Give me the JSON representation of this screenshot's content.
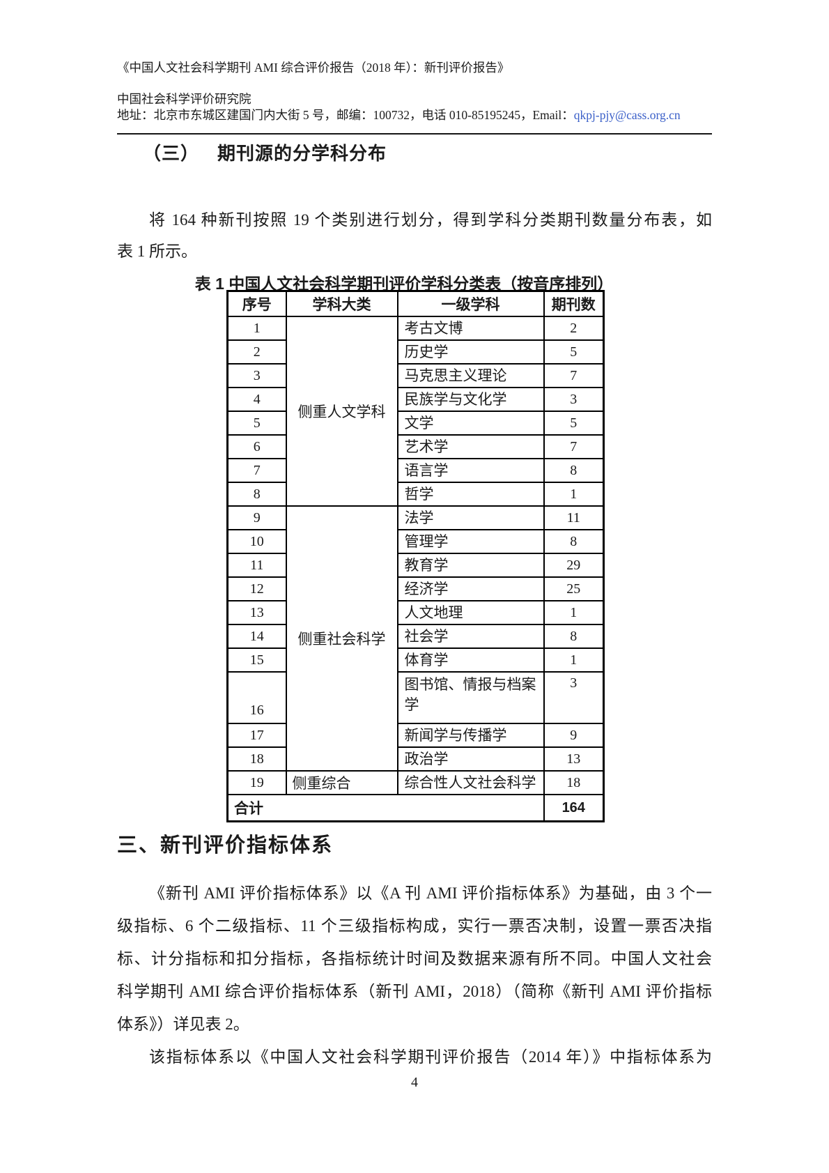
{
  "colors": {
    "link_blue": "#3a5fc8",
    "text": "#1b1b1b"
  },
  "header": {
    "title": "《中国人文社会科学期刊 AMI 综合评价报告（2018 年）：新刊评价报告》",
    "org": "中国社会科学评价研究院",
    "address_prefix": "地址：北京市东城区建国门内大街 5 号，邮编：100732，电话 010-85195245，Email：",
    "email": "qkpj-pjy@cass.org.cn"
  },
  "section3": {
    "label": "（三）",
    "title": "期刊源的分学科分布"
  },
  "para_intro": {
    "lines": [
      "将 164 种新刊按照 19 个类别进行划分，得到学科分类期刊数量分布表，如",
      "表 1 所示。"
    ]
  },
  "table1": {
    "caption": "表 1 中国人文社会科学期刊评价学科分类表（按音序排列）",
    "columns": [
      "序号",
      "学科大类",
      "一级学科",
      "期刊数"
    ],
    "groups": [
      {
        "name": "侧重人文学科",
        "span": 8
      },
      {
        "name": "侧重社会科学",
        "span": 10
      },
      {
        "name": "侧重综合",
        "span": 1
      }
    ],
    "rows": [
      {
        "no": "1",
        "discipline": "考古文博",
        "count": "2"
      },
      {
        "no": "2",
        "discipline": "历史学",
        "count": "5"
      },
      {
        "no": "3",
        "discipline": "马克思主义理论",
        "count": "7"
      },
      {
        "no": "4",
        "discipline": "民族学与文化学",
        "count": "3"
      },
      {
        "no": "5",
        "discipline": "文学",
        "count": "5"
      },
      {
        "no": "6",
        "discipline": "艺术学",
        "count": "7"
      },
      {
        "no": "7",
        "discipline": "语言学",
        "count": "8"
      },
      {
        "no": "8",
        "discipline": "哲学",
        "count": "1"
      },
      {
        "no": "9",
        "discipline": "法学",
        "count": "11"
      },
      {
        "no": "10",
        "discipline": "管理学",
        "count": "8"
      },
      {
        "no": "11",
        "discipline": "教育学",
        "count": "29"
      },
      {
        "no": "12",
        "discipline": "经济学",
        "count": "25"
      },
      {
        "no": "13",
        "discipline": "人文地理",
        "count": "1"
      },
      {
        "no": "14",
        "discipline": "社会学",
        "count": "8"
      },
      {
        "no": "15",
        "discipline": "体育学",
        "count": "1"
      },
      {
        "no": "16",
        "discipline": "图书馆、情报与档案学",
        "count": "3"
      },
      {
        "no": "17",
        "discipline": "新闻学与传播学",
        "count": "9"
      },
      {
        "no": "18",
        "discipline": "政治学",
        "count": "13"
      },
      {
        "no": "19",
        "discipline": "综合性人文社会科学",
        "count": "18"
      }
    ],
    "total_label": "合计",
    "total_count": "164"
  },
  "section_main": {
    "title": "三、新刊评价指标体系"
  },
  "para_body": {
    "lines": [
      "《新刊 AMI 评价指标体系》以《A 刊 AMI 评价指标体系》为基础，由 3 个一",
      "级指标、6 个二级指标、11 个三级指标构成，实行一票否决制，设置一票否决指",
      "标、计分指标和扣分指标，各指标统计时间及数据来源有所不同。中国人文社会",
      "科学期刊 AMI 综合评价指标体系（新刊 AMI，2018）（简称《新刊 AMI 评价指标",
      "体系》）详见表 2。"
    ]
  },
  "para_next": {
    "lines": [
      "该指标体系以《中国人文社会科学期刊评价报告（2014 年）》中指标体系为"
    ]
  },
  "page": {
    "number": "4"
  }
}
